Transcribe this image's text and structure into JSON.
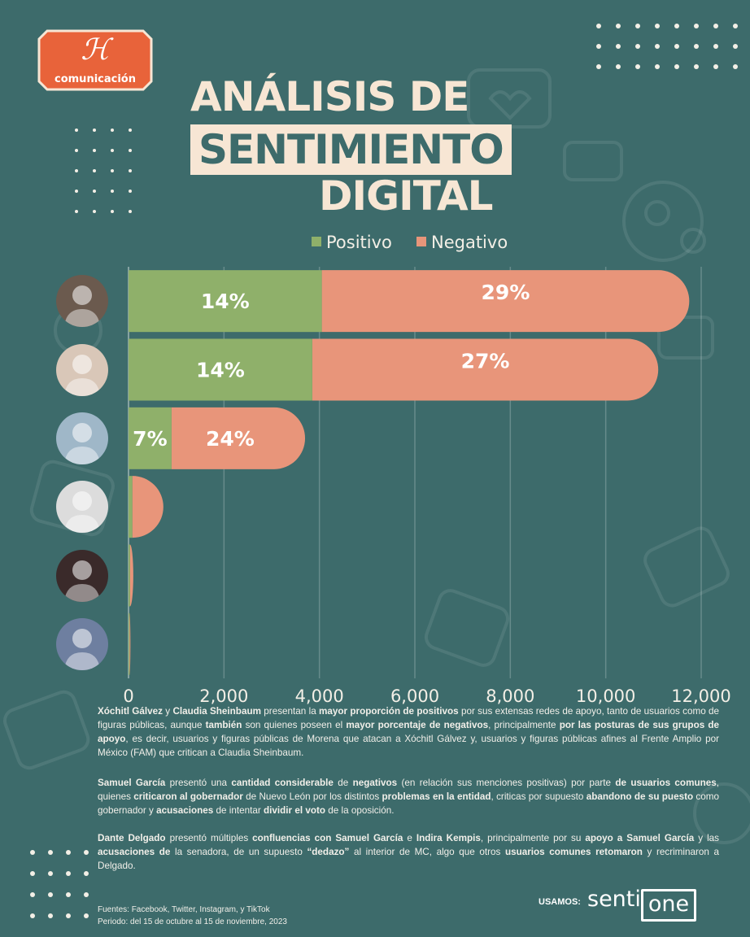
{
  "brand": {
    "logo_text": "comunicación",
    "logo_mark": "ℋ",
    "logo_color": "#e8633a"
  },
  "title": {
    "line1": "ANÁLISIS DE",
    "line2": "SENTIMIENTO",
    "line3": "DIGITAL"
  },
  "colors": {
    "background": "#3d6b6b",
    "positive": "#8fb06a",
    "negative": "#e8957a",
    "title": "#f7e6d4"
  },
  "chart_data": {
    "type": "bar",
    "orientation": "horizontal",
    "stacked": true,
    "categories": [
      "avatar-1",
      "avatar-2",
      "avatar-3",
      "avatar-4",
      "avatar-5",
      "avatar-6"
    ],
    "series": [
      {
        "name": "Positivo",
        "values": [
          4050,
          3850,
          900,
          80,
          30,
          20
        ],
        "labels": [
          "14%",
          "14%",
          "7%",
          "",
          "",
          ""
        ]
      },
      {
        "name": "Negativo",
        "values": [
          7700,
          7250,
          2800,
          650,
          70,
          20
        ],
        "labels": [
          "29%",
          "27%",
          "24%",
          "",
          "",
          ""
        ]
      }
    ],
    "xlim": [
      0,
      12000
    ],
    "xticks": [
      "0",
      "2,000",
      "4,000",
      "6,000",
      "8,000",
      "10,000",
      "12,000"
    ],
    "grid": true,
    "legend_position": "top"
  },
  "paragraphs": [
    {
      "segments": [
        {
          "t": "Xóchitl Gálvez",
          "b": true
        },
        {
          "t": " y ",
          "b": false
        },
        {
          "t": "Claudia Sheinbaum",
          "b": true
        },
        {
          "t": " presentan la ",
          "b": false
        },
        {
          "t": "mayor proporción de positivos",
          "b": true
        },
        {
          "t": " por sus extensas redes de apoyo, tanto de usuarios como de figuras públicas, aunque ",
          "b": false
        },
        {
          "t": "también",
          "b": true
        },
        {
          "t": " son quienes poseen el ",
          "b": false
        },
        {
          "t": "mayor porcentaje de negativos",
          "b": true
        },
        {
          "t": ", principalmente ",
          "b": false
        },
        {
          "t": "por las posturas de sus grupos de apoyo",
          "b": true
        },
        {
          "t": ", es decir, usuarios y figuras públicas de Morena que atacan a Xóchitl Gálvez y, usuarios y figuras públicas afines al Frente Amplio por México (FAM) que critican a Claudia Sheinbaum.",
          "b": false
        }
      ]
    },
    {
      "segments": [
        {
          "t": "Samuel García",
          "b": true
        },
        {
          "t": " presentó una ",
          "b": false
        },
        {
          "t": "cantidad considerable",
          "b": true
        },
        {
          "t": " de ",
          "b": false
        },
        {
          "t": "negativos",
          "b": true
        },
        {
          "t": " (en relación sus menciones positivas) por parte ",
          "b": false
        },
        {
          "t": "de usuarios comunes",
          "b": true
        },
        {
          "t": ", quienes ",
          "b": false
        },
        {
          "t": "criticaron al gobernador",
          "b": true
        },
        {
          "t": " de Nuevo León por los distintos ",
          "b": false
        },
        {
          "t": "problemas en la entidad",
          "b": true
        },
        {
          "t": ", criticas por supuesto ",
          "b": false
        },
        {
          "t": "abandono de su puesto",
          "b": true
        },
        {
          "t": " como gobernador y ",
          "b": false
        },
        {
          "t": "acusaciones",
          "b": true
        },
        {
          "t": " de intentar ",
          "b": false
        },
        {
          "t": "dividir el voto",
          "b": true
        },
        {
          "t": " de la oposición.",
          "b": false
        }
      ]
    },
    {
      "segments": [
        {
          "t": "Dante Delgado",
          "b": true
        },
        {
          "t": " presentó múltiples ",
          "b": false
        },
        {
          "t": "confluencias con Samuel García",
          "b": true
        },
        {
          "t": " e ",
          "b": false
        },
        {
          "t": "Indira Kempis",
          "b": true
        },
        {
          "t": ", principalmente por su ",
          "b": false
        },
        {
          "t": "apoyo a Samuel García",
          "b": true
        },
        {
          "t": " y las ",
          "b": false
        },
        {
          "t": "acusaciones de",
          "b": true
        },
        {
          "t": " la senadora, de un supuesto ",
          "b": false
        },
        {
          "t": "“dedazo”",
          "b": true
        },
        {
          "t": " al interior de MC, algo que otros ",
          "b": false
        },
        {
          "t": "usuarios comunes retomaron",
          "b": true
        },
        {
          "t": " y recriminaron a Delgado.",
          "b": false
        }
      ]
    }
  ],
  "footer": {
    "sources": "Fuentes:  Facebook, Twitter, Instagram, y TikTok",
    "period": "Periodo: del 15 de octubre al 15 de noviembre, 2023"
  },
  "credit": {
    "label": "USAMOS:",
    "brand_a": "senti",
    "brand_b": "one"
  }
}
